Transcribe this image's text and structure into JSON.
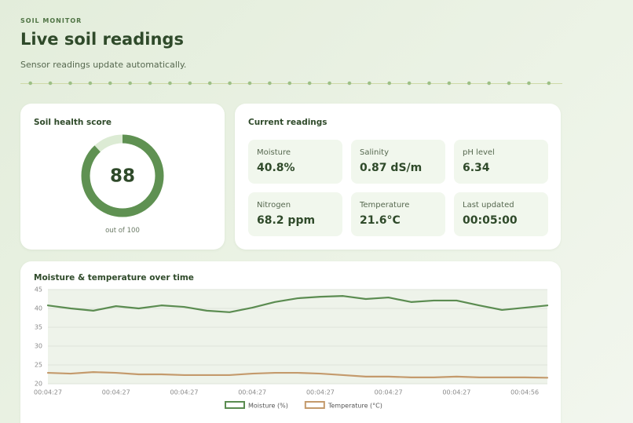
{
  "header": {
    "eyebrow": "SOIL MONITOR",
    "title": "Live soil readings",
    "subtitle": "Sensor readings update automatically."
  },
  "score": {
    "title": "Soil health score",
    "value": 88,
    "caption": "out of",
    "max": 100
  },
  "readings": {
    "title": "Current readings",
    "items": [
      {
        "label": "Moisture",
        "value": "40.8%"
      },
      {
        "label": "Salinity",
        "value": "0.87 dS/m"
      },
      {
        "label": "pH level",
        "value": "6.34"
      },
      {
        "label": "Nitrogen",
        "value": "68.2 ppm"
      },
      {
        "label": "Temperature",
        "value": "21.6°C"
      },
      {
        "label": "Last updated",
        "value": "00:05:00"
      }
    ]
  },
  "chart_data": {
    "type": "line",
    "title": "Moisture & temperature over time",
    "categories": [
      "00:04:27",
      null,
      null,
      "00:04:27",
      null,
      null,
      "00:04:27",
      null,
      null,
      "00:04:27",
      null,
      null,
      "00:04:27",
      null,
      null,
      "00:04:27",
      null,
      null,
      "00:04:27",
      null,
      null,
      "00:04:56",
      null
    ],
    "series": [
      {
        "name": "Moisture (%)",
        "color": "#5b8c51",
        "values": [
          40.8,
          40.0,
          39.4,
          40.6,
          40.0,
          40.8,
          40.4,
          39.4,
          39.0,
          40.2,
          41.7,
          42.7,
          43.1,
          43.3,
          42.5,
          42.9,
          41.7,
          42.1,
          42.1,
          40.8,
          39.6,
          40.2,
          40.8
        ]
      },
      {
        "name": "Temperature (°C)",
        "color": "#c49a6c",
        "values": [
          22.9,
          22.7,
          23.1,
          22.9,
          22.5,
          22.5,
          22.3,
          22.3,
          22.3,
          22.7,
          22.9,
          22.9,
          22.7,
          22.3,
          21.9,
          21.9,
          21.7,
          21.7,
          21.9,
          21.7,
          21.7,
          21.7,
          21.6
        ]
      }
    ],
    "ylim": [
      20,
      45
    ],
    "yticks": [
      20,
      25,
      30,
      35,
      40,
      45
    ],
    "grid": true,
    "legend": "bottom"
  }
}
